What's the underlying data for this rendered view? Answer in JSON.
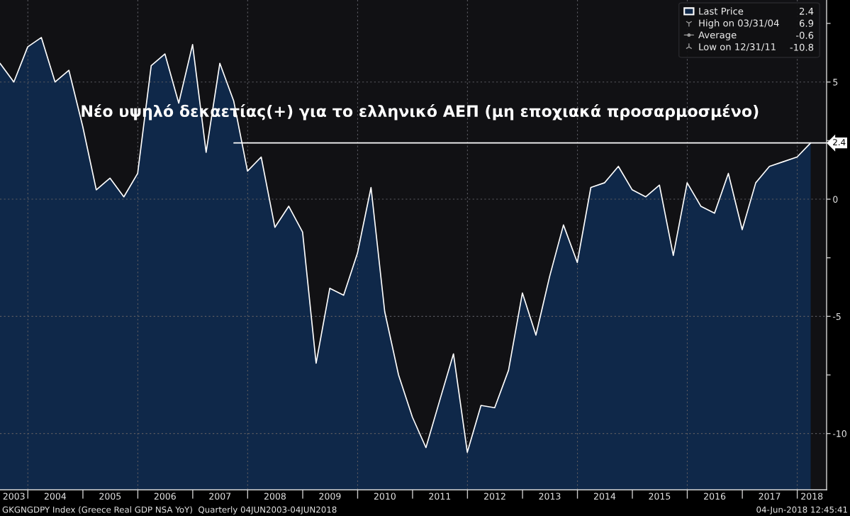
{
  "chart_data": {
    "type": "area",
    "title": "Νέο υψηλό δεκαετίας(+) για το ελληνικό ΑΕΠ (μη εποχιακά προσαρμοσμένο)",
    "x": [
      "2003-06-30",
      "2003-09-30",
      "2003-12-31",
      "2004-03-31",
      "2004-06-30",
      "2004-09-30",
      "2004-12-31",
      "2005-03-31",
      "2005-06-30",
      "2005-09-30",
      "2005-12-31",
      "2006-03-31",
      "2006-06-30",
      "2006-09-30",
      "2006-12-31",
      "2007-03-31",
      "2007-06-30",
      "2007-09-30",
      "2007-12-31",
      "2008-03-31",
      "2008-06-30",
      "2008-09-30",
      "2008-12-31",
      "2009-03-31",
      "2009-06-30",
      "2009-09-30",
      "2009-12-31",
      "2010-03-31",
      "2010-06-30",
      "2010-09-30",
      "2010-12-31",
      "2011-03-31",
      "2011-06-30",
      "2011-09-30",
      "2011-12-31",
      "2012-03-31",
      "2012-06-30",
      "2012-09-30",
      "2012-12-31",
      "2013-03-31",
      "2013-06-30",
      "2013-09-30",
      "2013-12-31",
      "2014-03-31",
      "2014-06-30",
      "2014-09-30",
      "2014-12-31",
      "2015-03-31",
      "2015-06-30",
      "2015-09-30",
      "2015-12-31",
      "2016-03-31",
      "2016-06-30",
      "2016-09-30",
      "2016-12-31",
      "2017-03-31",
      "2017-06-30",
      "2017-09-30",
      "2017-12-31",
      "2018-03-31"
    ],
    "series": [
      {
        "name": "Last Price",
        "color": "#0f2849",
        "values": [
          5.8,
          5.0,
          6.5,
          6.9,
          5.0,
          5.5,
          3.1,
          0.4,
          0.9,
          0.1,
          1.1,
          5.7,
          6.2,
          4.1,
          6.6,
          2.0,
          5.8,
          4.2,
          1.2,
          1.8,
          -1.2,
          -0.3,
          -1.4,
          -7.0,
          -3.8,
          -4.1,
          -2.3,
          0.5,
          -4.8,
          -7.5,
          -9.3,
          -10.6,
          -8.6,
          -6.6,
          -10.8,
          -8.8,
          -8.9,
          -7.3,
          -4.0,
          -5.8,
          -3.3,
          -1.1,
          -2.7,
          0.5,
          0.7,
          1.4,
          0.4,
          0.1,
          0.6,
          -2.4,
          0.7,
          -0.3,
          -0.6,
          1.1,
          -1.3,
          0.7,
          1.4,
          1.6,
          1.8,
          2.4
        ]
      }
    ],
    "xlim": [
      "2003-06-30",
      "2018-07-15"
    ],
    "xticks": [
      {
        "value": "2003-10-01",
        "label": "2003"
      },
      {
        "value": "2004-01-01",
        "label": null
      },
      {
        "value": "2004-07-01",
        "label": "2004"
      },
      {
        "value": "2005-01-01",
        "label": null
      },
      {
        "value": "2005-07-01",
        "label": "2005"
      },
      {
        "value": "2006-01-01",
        "label": null
      },
      {
        "value": "2006-07-01",
        "label": "2006"
      },
      {
        "value": "2007-01-01",
        "label": null
      },
      {
        "value": "2007-07-01",
        "label": "2007"
      },
      {
        "value": "2008-01-01",
        "label": null
      },
      {
        "value": "2008-07-01",
        "label": "2008"
      },
      {
        "value": "2009-01-01",
        "label": null
      },
      {
        "value": "2009-07-01",
        "label": "2009"
      },
      {
        "value": "2010-01-01",
        "label": null
      },
      {
        "value": "2010-07-01",
        "label": "2010"
      },
      {
        "value": "2011-01-01",
        "label": null
      },
      {
        "value": "2011-07-01",
        "label": "2011"
      },
      {
        "value": "2012-01-01",
        "label": null
      },
      {
        "value": "2012-07-01",
        "label": "2012"
      },
      {
        "value": "2013-01-01",
        "label": null
      },
      {
        "value": "2013-07-01",
        "label": "2013"
      },
      {
        "value": "2014-01-01",
        "label": null
      },
      {
        "value": "2014-07-01",
        "label": "2014"
      },
      {
        "value": "2015-01-01",
        "label": null
      },
      {
        "value": "2015-07-01",
        "label": "2015"
      },
      {
        "value": "2016-01-01",
        "label": null
      },
      {
        "value": "2016-07-01",
        "label": "2016"
      },
      {
        "value": "2017-01-01",
        "label": null
      },
      {
        "value": "2017-07-01",
        "label": "2017"
      },
      {
        "value": "2018-01-01",
        "label": null
      },
      {
        "value": "2018-04-08",
        "label": "2018"
      }
    ],
    "ylim": [
      -12.4,
      8.5
    ],
    "yticks": [
      {
        "value": 7.5,
        "label": null
      },
      5,
      {
        "value": 2.5,
        "label": null
      },
      0,
      {
        "value": -2.5,
        "label": null
      },
      -5,
      {
        "value": -7.5,
        "label": null
      },
      -10
    ],
    "grid": true,
    "legend": "top right",
    "ref_lines": [
      {
        "axis": "y",
        "value": 2.4,
        "label": "2.4",
        "color": "#ffffff"
      }
    ],
    "annotations": [
      "2.4",
      "High on 03/31/04",
      "6.9",
      "Average",
      "-0.6",
      "Low on 12/31/11",
      "-10.8",
      "GKGNGDPY Index (Greece Real GDP NSA YoY)  Quarterly 04JUN2003-04JUN2018",
      "04-Jun-2018 12:45:41"
    ]
  }
}
